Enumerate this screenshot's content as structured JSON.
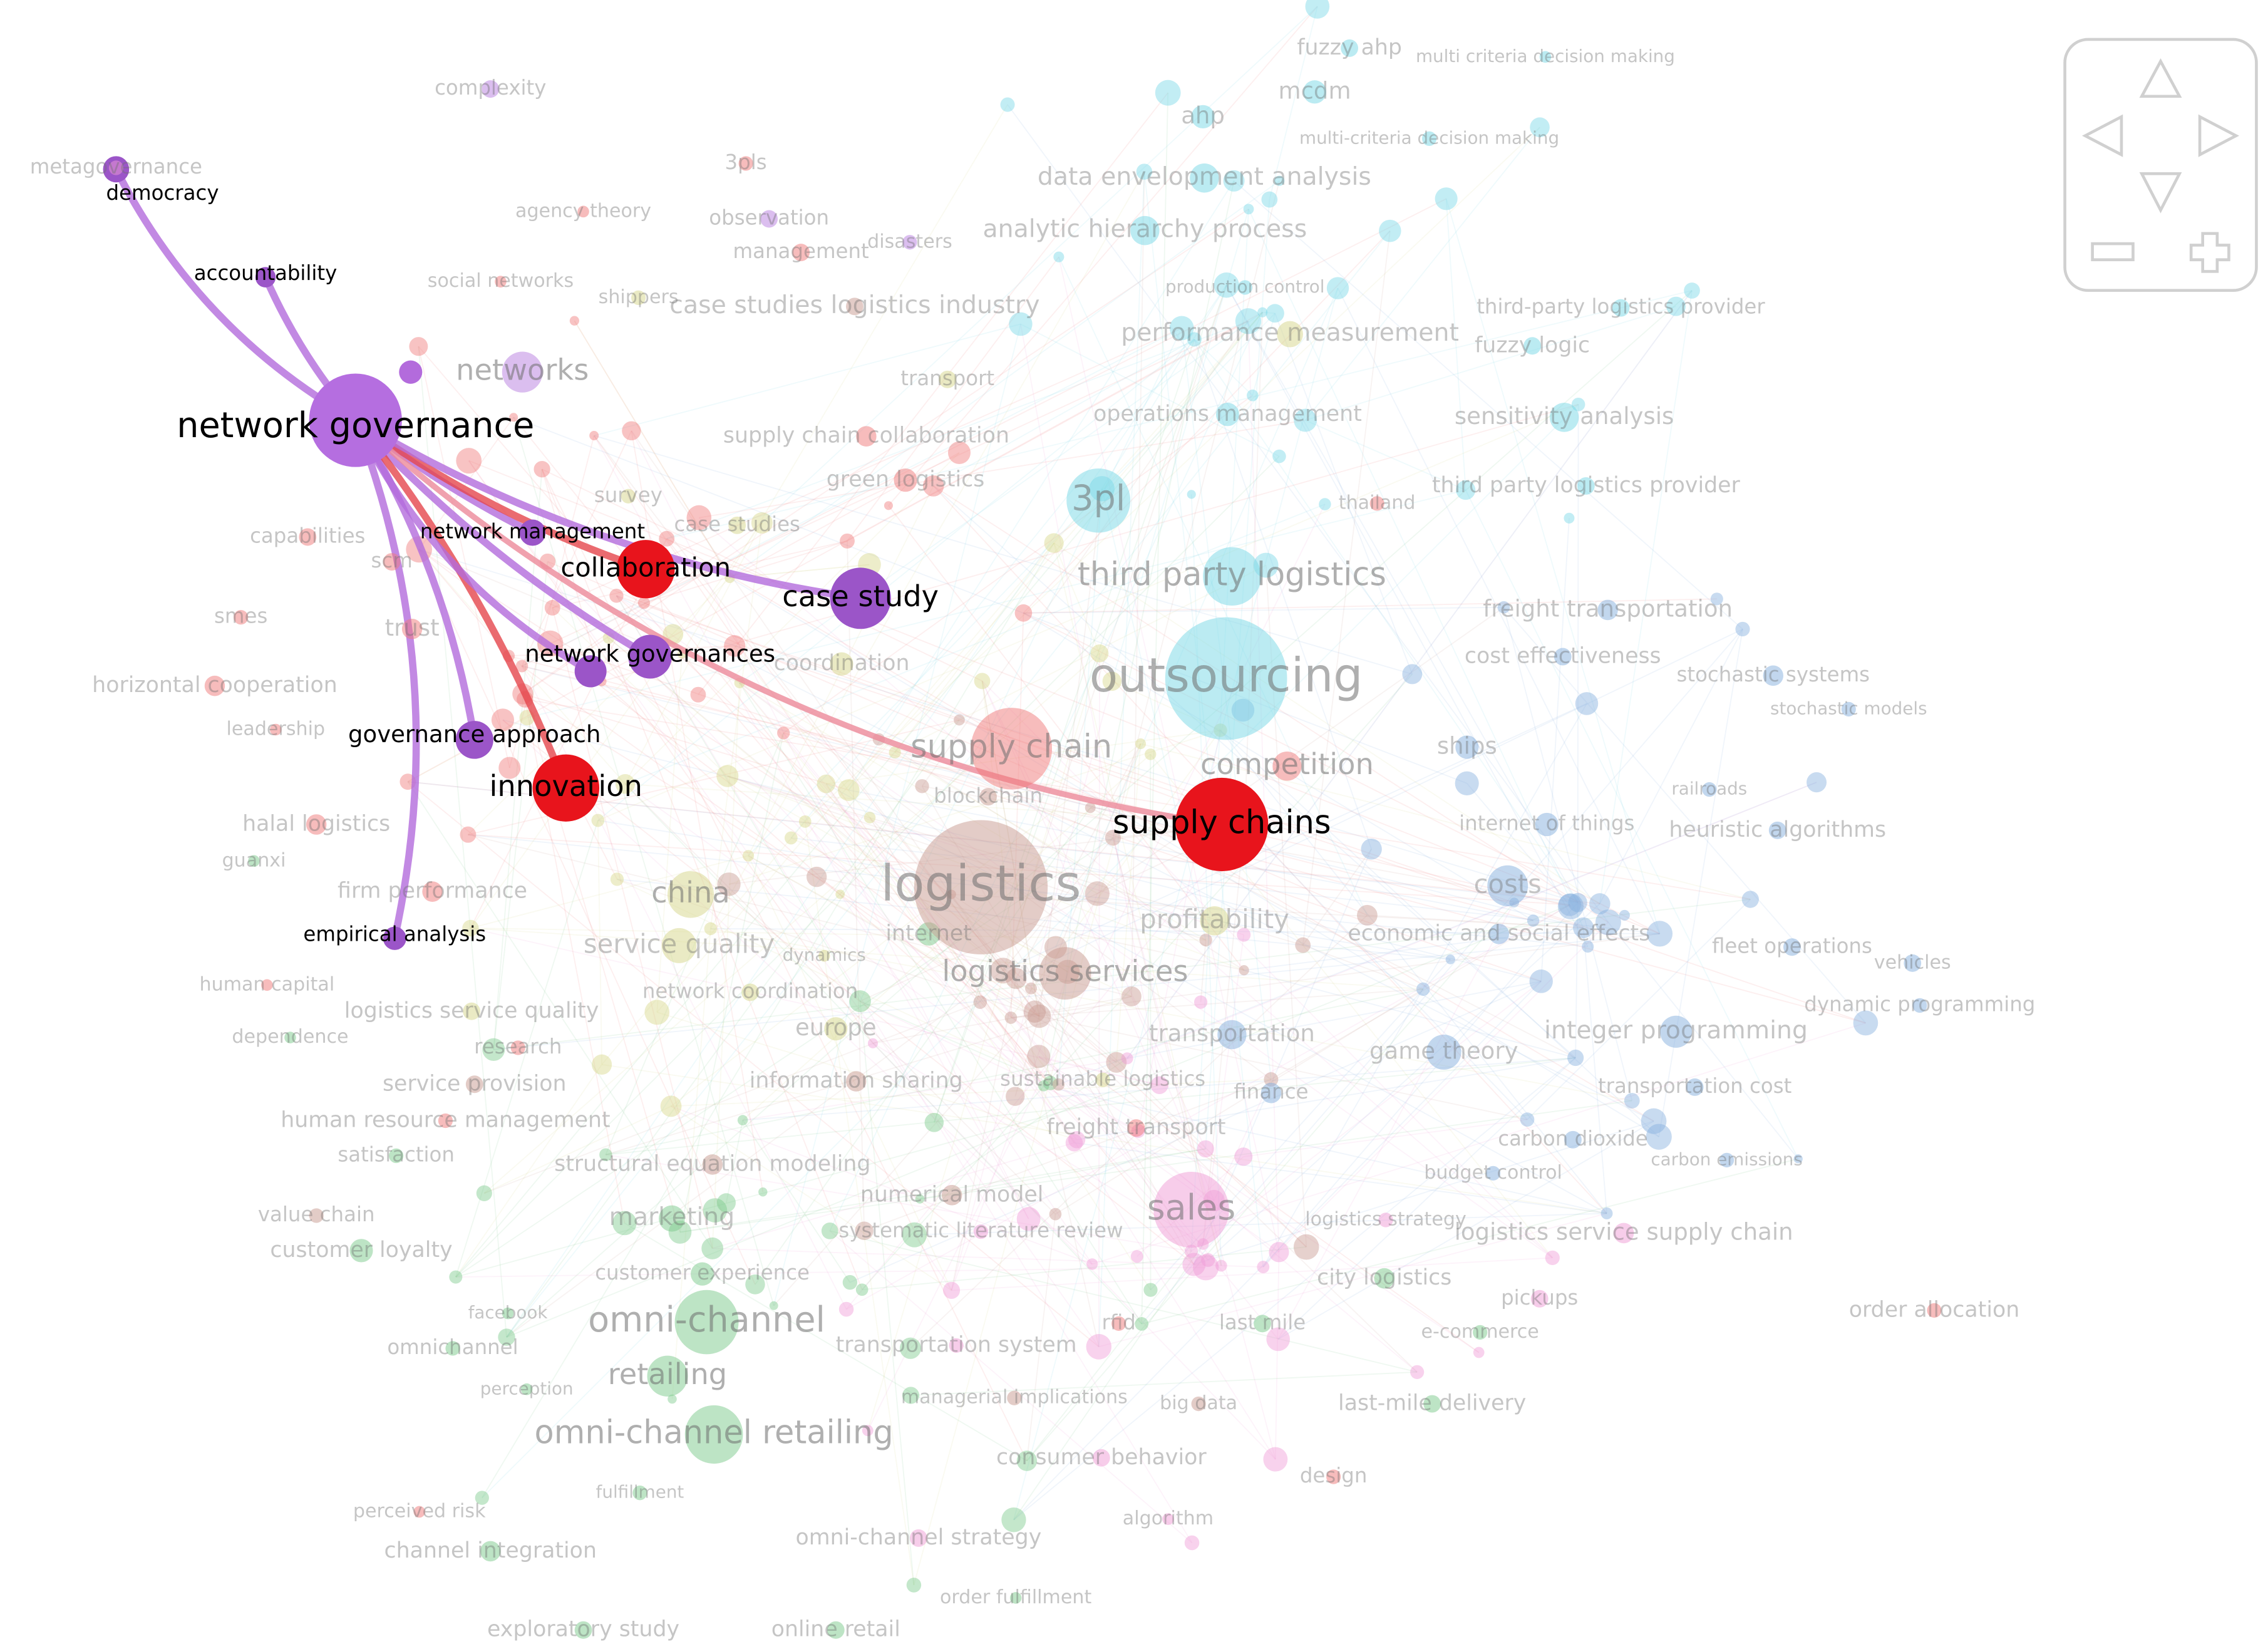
{
  "nodes": [
    {
      "label": "network governance"
    },
    {
      "label": "democracy"
    },
    {
      "label": "accountability"
    },
    {
      "label": "network management"
    },
    {
      "label": "collaboration"
    },
    {
      "label": "case study"
    },
    {
      "label": "network governances"
    },
    {
      "label": "governance approach"
    },
    {
      "label": "innovation"
    },
    {
      "label": "supply chains"
    },
    {
      "label": "empirical analysis"
    },
    {
      "label": "complexity"
    },
    {
      "label": "metagovernance"
    },
    {
      "label": "3pls"
    },
    {
      "label": "agency theory"
    },
    {
      "label": "observation"
    },
    {
      "label": "disasters"
    },
    {
      "label": "management"
    },
    {
      "label": "social networks"
    },
    {
      "label": "shippers"
    },
    {
      "label": "case studies logistics industry"
    },
    {
      "label": "networks"
    },
    {
      "label": "transport"
    },
    {
      "label": "supply chain collaboration"
    },
    {
      "label": "green logistics"
    },
    {
      "label": "survey"
    },
    {
      "label": "case studies"
    },
    {
      "label": "capabilities"
    },
    {
      "label": "scm"
    },
    {
      "label": "smes"
    },
    {
      "label": "trust"
    },
    {
      "label": "horizontal cooperation"
    },
    {
      "label": "leadership"
    },
    {
      "label": "coordination"
    },
    {
      "label": "halal logistics"
    },
    {
      "label": "guanxi"
    },
    {
      "label": "firm performance"
    },
    {
      "label": "china"
    },
    {
      "label": "service quality"
    },
    {
      "label": "dynamics"
    },
    {
      "label": "internet"
    },
    {
      "label": "network coordination"
    },
    {
      "label": "human capital"
    },
    {
      "label": "logistics service quality"
    },
    {
      "label": "dependence"
    },
    {
      "label": "research"
    },
    {
      "label": "europe"
    },
    {
      "label": "service provision"
    },
    {
      "label": "information sharing"
    },
    {
      "label": "sustainable logistics"
    },
    {
      "label": "human resource management"
    },
    {
      "label": "satisfaction"
    },
    {
      "label": "structural equation modeling"
    },
    {
      "label": "freight transport"
    },
    {
      "label": "numerical model"
    },
    {
      "label": "value chain"
    },
    {
      "label": "marketing"
    },
    {
      "label": "systematic literature review"
    },
    {
      "label": "customer loyalty"
    },
    {
      "label": "sales"
    },
    {
      "label": "customer experience"
    },
    {
      "label": "facebook"
    },
    {
      "label": "omni-channel"
    },
    {
      "label": "transportation system"
    },
    {
      "label": "omnichannel"
    },
    {
      "label": "rfid"
    },
    {
      "label": "last mile"
    },
    {
      "label": "e-commerce"
    },
    {
      "label": "retailing"
    },
    {
      "label": "perception"
    },
    {
      "label": "managerial implications"
    },
    {
      "label": "big data"
    },
    {
      "label": "last-mile delivery"
    },
    {
      "label": "omni-channel retailing"
    },
    {
      "label": "consumer behavior"
    },
    {
      "label": "design"
    },
    {
      "label": "fulfillment"
    },
    {
      "label": "perceived risk"
    },
    {
      "label": "algorithm"
    },
    {
      "label": "channel integration"
    },
    {
      "label": "omni-channel strategy"
    },
    {
      "label": "order fulfillment"
    },
    {
      "label": "exploratory study"
    },
    {
      "label": "online retail"
    },
    {
      "label": "fuzzy ahp"
    },
    {
      "label": "multi criteria decision making"
    },
    {
      "label": "ahp"
    },
    {
      "label": "mcdm"
    },
    {
      "label": "multi-criteria decision making"
    },
    {
      "label": "data envelopment analysis"
    },
    {
      "label": "analytic hierarchy process"
    },
    {
      "label": "production control"
    },
    {
      "label": "third-party logistics provider"
    },
    {
      "label": "performance measurement"
    },
    {
      "label": "fuzzy logic"
    },
    {
      "label": "operations management"
    },
    {
      "label": "sensitivity analysis"
    },
    {
      "label": "thailand"
    },
    {
      "label": "third party logistics provider"
    },
    {
      "label": "3pl"
    },
    {
      "label": "third party logistics"
    },
    {
      "label": "freight transportation"
    },
    {
      "label": "cost effectiveness"
    },
    {
      "label": "outsourcing"
    },
    {
      "label": "stochastic systems"
    },
    {
      "label": "stochastic models"
    },
    {
      "label": "supply chain"
    },
    {
      "label": "competition"
    },
    {
      "label": "ships"
    },
    {
      "label": "blockchain"
    },
    {
      "label": "railroads"
    },
    {
      "label": "internet of things"
    },
    {
      "label": "heuristic algorithms"
    },
    {
      "label": "logistics"
    },
    {
      "label": "costs"
    },
    {
      "label": "profitability"
    },
    {
      "label": "economic and social effects"
    },
    {
      "label": "fleet operations"
    },
    {
      "label": "vehicles"
    },
    {
      "label": "logistics services"
    },
    {
      "label": "dynamic programming"
    },
    {
      "label": "transportation"
    },
    {
      "label": "game theory"
    },
    {
      "label": "integer programming"
    },
    {
      "label": "finance"
    },
    {
      "label": "transportation cost"
    },
    {
      "label": "carbon dioxide"
    },
    {
      "label": "carbon emissions"
    },
    {
      "label": "budget control"
    },
    {
      "label": "logistics strategy"
    },
    {
      "label": "logistics service supply chain"
    },
    {
      "label": "city logistics"
    },
    {
      "label": "pickups"
    },
    {
      "label": "order allocation"
    }
  ]
}
